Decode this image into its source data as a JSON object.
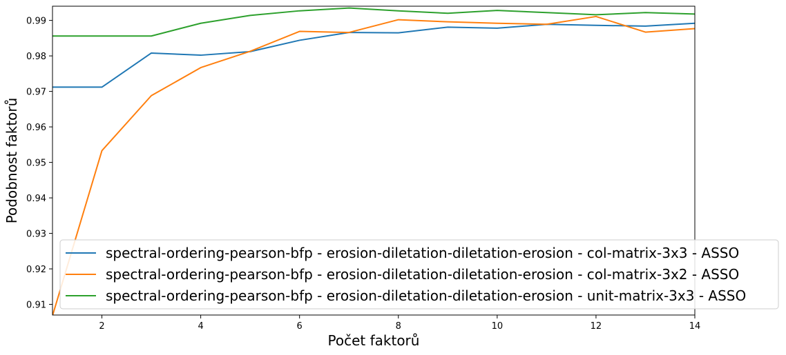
{
  "chart_data": {
    "type": "line",
    "xlabel": "Počet faktorů",
    "ylabel": "Podobnost faktorů",
    "xlim": [
      1,
      14
    ],
    "ylim": [
      0.907,
      0.994
    ],
    "xticks": [
      2,
      4,
      6,
      8,
      10,
      12,
      14
    ],
    "yticks": [
      0.91,
      0.92,
      0.93,
      0.94,
      0.95,
      0.96,
      0.97,
      0.98,
      0.99
    ],
    "legend_position": "lower-right",
    "grid": false,
    "x": [
      1,
      2,
      3,
      4,
      5,
      6,
      7,
      8,
      9,
      10,
      11,
      12,
      13,
      14
    ],
    "series": [
      {
        "name": "spectral-ordering-pearson-bfp - erosion-diletation-diletation-erosion - col-matrix-3x3 - ASSO",
        "color": "#1f77b4",
        "values": [
          0.9712,
          0.9712,
          0.9808,
          0.9802,
          0.9812,
          0.9844,
          0.9866,
          0.9865,
          0.9881,
          0.9878,
          0.9889,
          0.9886,
          0.9884,
          0.9892
        ]
      },
      {
        "name": "spectral-ordering-pearson-bfp - erosion-diletation-diletation-erosion - col-matrix-3x2 - ASSO",
        "color": "#ff7f0e",
        "values": [
          0.9068,
          0.9533,
          0.9688,
          0.9767,
          0.9813,
          0.9869,
          0.9866,
          0.9902,
          0.9896,
          0.9892,
          0.9889,
          0.9911,
          0.9867,
          0.9877
        ]
      },
      {
        "name": "spectral-ordering-pearson-bfp - erosion-diletation-diletation-erosion - unit-matrix-3x3 - ASSO",
        "color": "#2ca02c",
        "values": [
          0.9856,
          0.9856,
          0.9856,
          0.9892,
          0.9914,
          0.9927,
          0.9935,
          0.9927,
          0.992,
          0.9928,
          0.9922,
          0.9916,
          0.9922,
          0.9918
        ]
      }
    ]
  }
}
